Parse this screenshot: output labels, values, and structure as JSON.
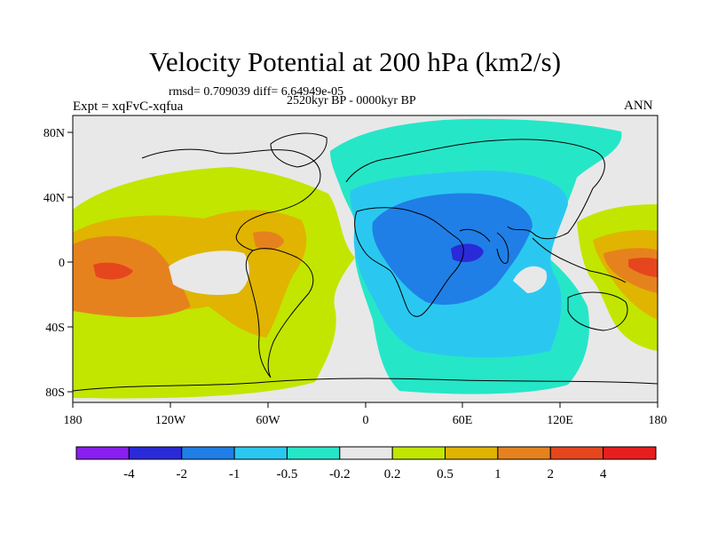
{
  "title": "Velocity Potential at 200 hPa (km2/s)",
  "subtitle_stats": "rmsd= 0.709039 diff= 6.64949e-05",
  "subtitle_period": "2520kyr BP - 0000kyr BP",
  "experiment": "Expt = xqFvC-xqfua",
  "season": "ANN",
  "map": {
    "lon_ticks": [
      "180",
      "120W",
      "60W",
      "0",
      "60E",
      "120E",
      "180"
    ],
    "lat_ticks": [
      "80N",
      "40N",
      "0",
      "40S",
      "80S"
    ]
  },
  "colorbar": {
    "labels": [
      "-4",
      "-2",
      "-1",
      "-0.5",
      "-0.2",
      "0.2",
      "0.5",
      "1",
      "2",
      "4"
    ],
    "colors": [
      "#8a1ef0",
      "#2a2ad8",
      "#1f7fe6",
      "#2ac8f0",
      "#26e6c8",
      "#e8e8e8",
      "#c2e600",
      "#e0b400",
      "#e6821e",
      "#e6461e",
      "#e81e1e"
    ]
  },
  "field_colors": {
    "gray": "#e8e8e8",
    "yellowgreen": "#c2e600",
    "gold": "#e0b400",
    "orange": "#e6821e",
    "redorange": "#e6461e",
    "teal": "#26e6c8",
    "cyan": "#2ac8f0",
    "blue": "#1f7fe6",
    "deepblue": "#2a2ad8"
  }
}
